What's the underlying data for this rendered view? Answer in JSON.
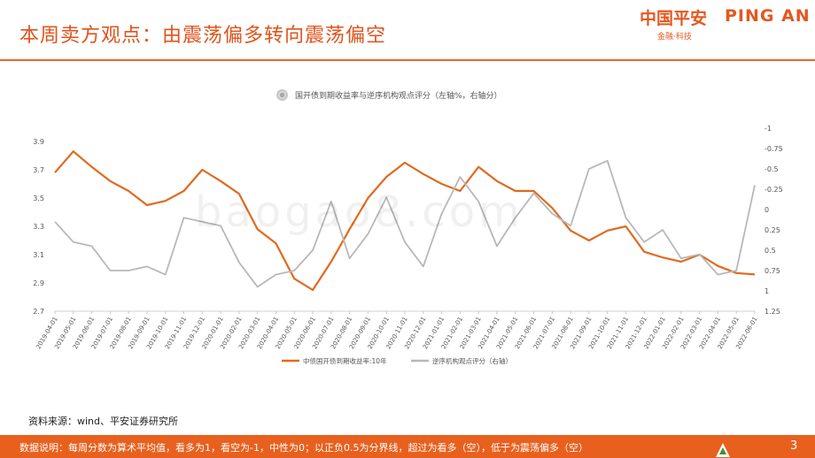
{
  "slide": {
    "title": "本周卖方观点：由震荡偏多转向震荡偏空",
    "source_note": "资料来源：wind、平安证券研究所",
    "footer_note": "数据说明：每周分数为算术平均值，看多为1，看空为-1，中性为0；以正负0.5为分界线，超过为看多（空），低于为震荡偏多（空）",
    "page_number": "3",
    "watermark_text": "baogao8.com"
  },
  "logo": {
    "name_cn": "中国平安",
    "name_en": "PING AN",
    "tagline": "金融·科技",
    "color": "#e3581f"
  },
  "chart_data": {
    "type": "line",
    "title": "国开债到期收益率与逆序机构观点评分（左轴%，右轴分）",
    "categories": [
      "2019-04-01",
      "2019-05-01",
      "2019-06-01",
      "2019-07-01",
      "2019-08-01",
      "2019-09-01",
      "2019-10-01",
      "2019-11-01",
      "2019-12-01",
      "2020-01-01",
      "2020-02-01",
      "2020-03-01",
      "2020-04-01",
      "2020-05-01",
      "2020-06-01",
      "2020-07-01",
      "2020-08-01",
      "2020-09-01",
      "2020-10-01",
      "2020-11-01",
      "2020-12-01",
      "2021-01-01",
      "2021-02-01",
      "2021-03-01",
      "2021-04-01",
      "2021-05-01",
      "2021-06-01",
      "2021-07-01",
      "2021-08-01",
      "2021-09-01",
      "2021-10-01",
      "2021-11-01",
      "2021-12-01",
      "2022-01-01",
      "2022-02-01",
      "2022-03-01",
      "2022-04-01",
      "2022-05-01",
      "2022-06-01"
    ],
    "y_left": {
      "ticks": [
        "3.9",
        "3.7",
        "3.5",
        "3.3",
        "3.1",
        "2.9",
        "2.7"
      ],
      "range": [
        2.7,
        3.9
      ]
    },
    "y_right": {
      "ticks": [
        "-1",
        "-0.75",
        "-0.5",
        "-0.25",
        "0",
        "0.25",
        "0.5",
        "0.75",
        "1",
        "1.25"
      ],
      "range": [
        -1,
        1.25
      ],
      "inverted": true
    },
    "series": [
      {
        "name": "中债国开债到期收益率:10年",
        "axis": "left",
        "color": "#e06a1e",
        "values": [
          3.68,
          3.83,
          3.72,
          3.62,
          3.55,
          3.45,
          3.48,
          3.55,
          3.7,
          3.62,
          3.53,
          3.28,
          3.18,
          2.93,
          2.85,
          3.05,
          3.28,
          3.5,
          3.65,
          3.75,
          3.67,
          3.6,
          3.55,
          3.72,
          3.62,
          3.55,
          3.55,
          3.43,
          3.27,
          3.2,
          3.27,
          3.3,
          3.12,
          3.08,
          3.05,
          3.1,
          3.02,
          2.97,
          2.96
        ]
      },
      {
        "name": "逆序机构观点评分（右轴）",
        "axis": "right",
        "color": "#b8b8b8",
        "values": [
          0.15,
          0.4,
          0.45,
          0.75,
          0.75,
          0.7,
          0.8,
          0.1,
          0.15,
          0.2,
          0.65,
          0.95,
          0.8,
          0.75,
          0.5,
          -0.1,
          0.6,
          0.3,
          -0.15,
          0.4,
          0.7,
          0.05,
          -0.4,
          -0.1,
          0.45,
          0.1,
          -0.2,
          0.05,
          0.2,
          -0.5,
          -0.6,
          0.1,
          0.4,
          0.25,
          0.6,
          0.55,
          0.8,
          0.75,
          -0.3
        ]
      }
    ],
    "legend": [
      "中债国开债到期收益率:10年",
      "逆序机构观点评分（右轴）"
    ],
    "legend_position": "bottom"
  }
}
